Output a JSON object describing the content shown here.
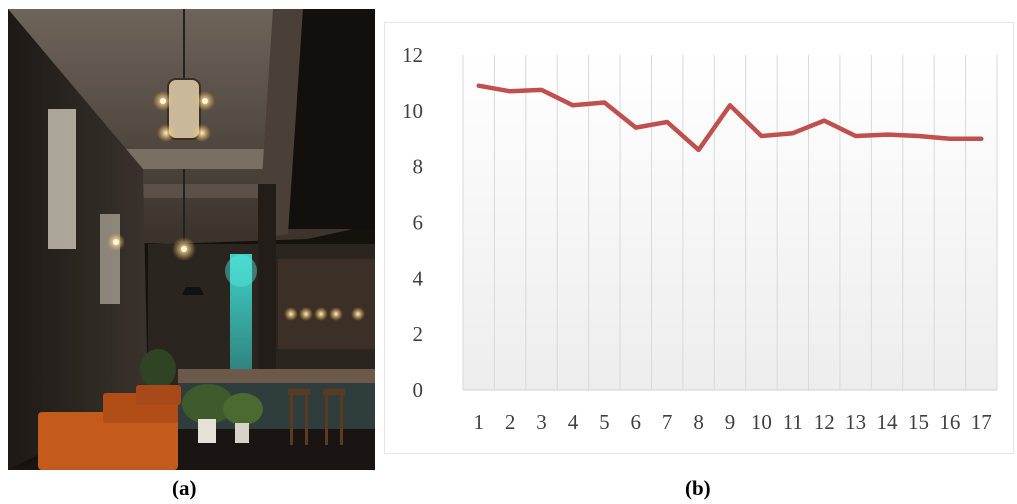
{
  "panels": {
    "a": "(a)",
    "b": "(b)"
  },
  "photo": {
    "subject": "cafe-interior-photo"
  },
  "chart_data": {
    "type": "line",
    "title": "",
    "xlabel": "",
    "ylabel": "",
    "x": [
      1,
      2,
      3,
      4,
      5,
      6,
      7,
      8,
      9,
      10,
      11,
      12,
      13,
      14,
      15,
      16,
      17
    ],
    "series": [
      {
        "values": [
          10.9,
          10.7,
          10.75,
          10.2,
          10.3,
          9.4,
          9.6,
          8.6,
          10.2,
          9.1,
          9.2,
          9.65,
          9.1,
          9.15,
          9.1,
          9.0,
          9.0
        ]
      }
    ],
    "ylim": [
      0,
      12
    ],
    "yticks": [
      0,
      2,
      4,
      6,
      8,
      10,
      12
    ],
    "grid": "vertical",
    "line_color": "#c0504d",
    "grid_color": "#d9d9d9"
  }
}
